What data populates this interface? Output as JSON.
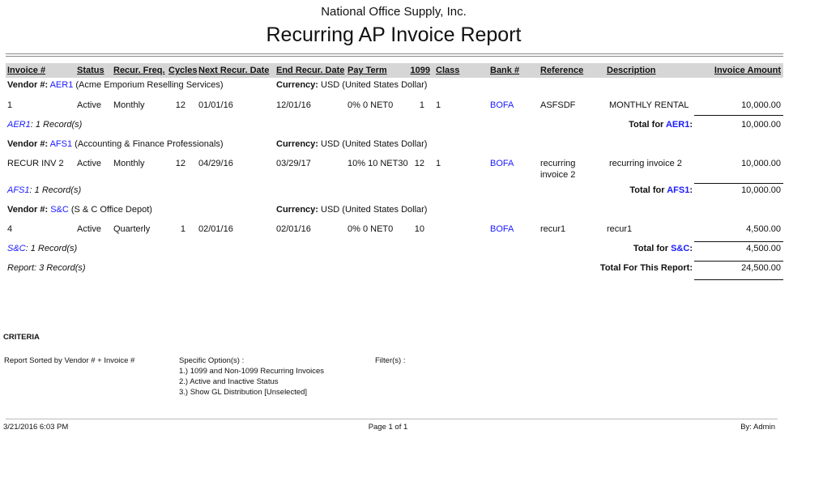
{
  "company": "National Office Supply, Inc.",
  "title": "Recurring AP Invoice Report",
  "columns": [
    "Invoice #",
    "Status",
    "Recur. Freq.",
    "Cycles",
    "Next Recur. Date",
    "End Recur. Date",
    "Pay Term",
    "1099",
    "Class",
    "Bank #",
    "Reference",
    "Description",
    "Invoice Amount"
  ],
  "labels": {
    "vendor": "Vendor #:",
    "currency": "Currency:",
    "total_for": "Total for",
    "total_report": "Total For This Report:"
  },
  "vendors": [
    {
      "code": "AER1",
      "name": "(Acme Emporium Reselling Services)",
      "currency": "USD (United States Dollar)",
      "row": {
        "invoice": "1",
        "status": "Active",
        "freq": "Monthly",
        "cycles": "12",
        "next": "01/01/16",
        "end": "12/01/16",
        "term": "0% 0 NET0",
        "f1099": "1",
        "class": "1",
        "bank": "BOFA",
        "reference": "ASFSDF",
        "description": "MONTHLY RENTAL",
        "amount": "10,000.00"
      },
      "count": "1 Record(s)",
      "total": "10,000.00"
    },
    {
      "code": "AFS1",
      "name": "(Accounting & Finance Professionals)",
      "currency": "USD (United States Dollar)",
      "row": {
        "invoice": "RECUR INV 2",
        "status": "Active",
        "freq": "Monthly",
        "cycles": "12",
        "next": "04/29/16",
        "end": "03/29/17",
        "term": "10% 10 NET30",
        "f1099": "12",
        "class": "1",
        "bank": "BOFA",
        "reference": "recurring invoice 2",
        "description": "recurring invoice 2",
        "amount": "10,000.00"
      },
      "count": "1 Record(s)",
      "total": "10,000.00"
    },
    {
      "code": "S&C",
      "name": "(S & C Office Depot)",
      "currency": "USD (United States Dollar)",
      "row": {
        "invoice": "4",
        "status": "Active",
        "freq": "Quarterly",
        "cycles": "1",
        "next": "02/01/16",
        "end": "02/01/16",
        "term": "0% 0 NET0",
        "f1099": "10",
        "class": "",
        "bank": "BOFA",
        "reference": "recur1",
        "description": "recur1",
        "amount": "4,500.00"
      },
      "count": "1 Record(s)",
      "total": "4,500.00"
    }
  ],
  "report_count": "Report: 3 Record(s)",
  "report_total": "24,500.00",
  "criteria": {
    "heading": "CRITERIA",
    "sorted": "Report Sorted by Vendor # + Invoice #",
    "options_label": "Specific Option(s) :",
    "options": [
      "1.) 1099 and Non-1099 Recurring Invoices",
      "2.) Active and Inactive Status",
      "3.) Show GL Distribution [Unselected]"
    ],
    "filters_label": "Filter(s) :"
  },
  "footer": {
    "datetime": "3/21/2016 6:03 PM",
    "page": "Page 1 of 1",
    "by": "By: Admin"
  },
  "colors": {
    "link": "#1a1aff",
    "header_bar": "#d6d6d6"
  }
}
